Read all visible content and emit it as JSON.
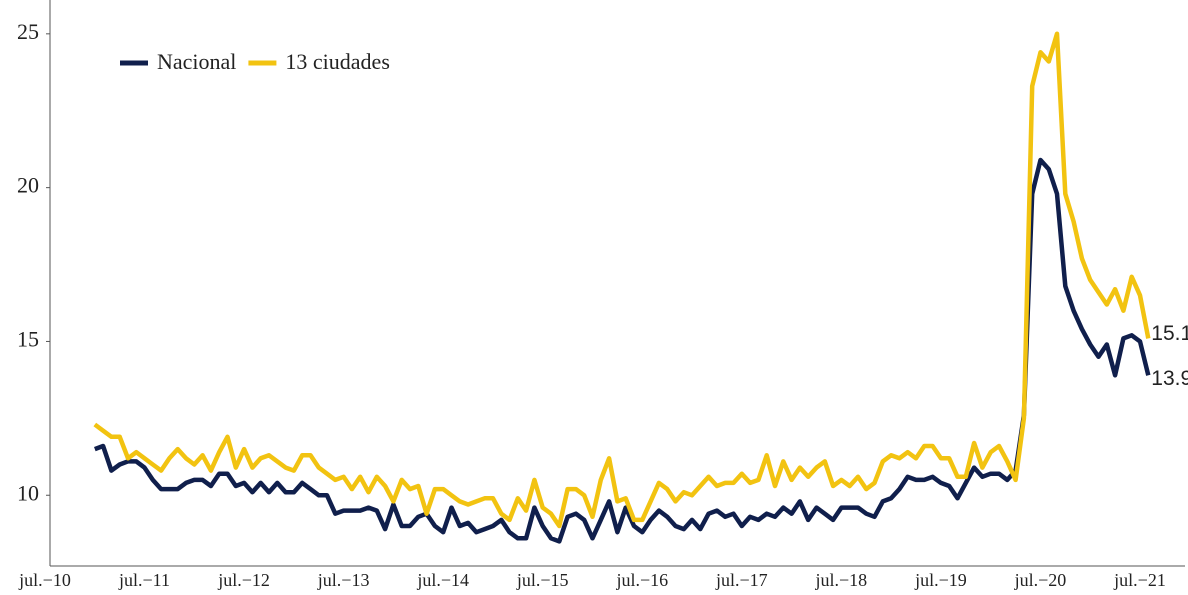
{
  "chart_data": {
    "type": "line",
    "categories": [
      "jul.−10",
      null,
      null,
      null,
      null,
      null,
      null,
      null,
      null,
      null,
      null,
      null,
      "jul.−11",
      null,
      null,
      null,
      null,
      null,
      null,
      null,
      null,
      null,
      null,
      null,
      "jul.−12",
      null,
      null,
      null,
      null,
      null,
      null,
      null,
      null,
      null,
      null,
      null,
      "jul.−13",
      null,
      null,
      null,
      null,
      null,
      null,
      null,
      null,
      null,
      null,
      null,
      "jul.−14",
      null,
      null,
      null,
      null,
      null,
      null,
      null,
      null,
      null,
      null,
      null,
      "jul.−15",
      null,
      null,
      null,
      null,
      null,
      null,
      null,
      null,
      null,
      null,
      null,
      "jul.−16",
      null,
      null,
      null,
      null,
      null,
      null,
      null,
      null,
      null,
      null,
      null,
      "jul.−17",
      null,
      null,
      null,
      null,
      null,
      null,
      null,
      null,
      null,
      null,
      null,
      "jul.−18",
      null,
      null,
      null,
      null,
      null,
      null,
      null,
      null,
      null,
      null,
      null,
      "jul.−19",
      null,
      null,
      null,
      null,
      null,
      null,
      null,
      null,
      null,
      null,
      null,
      "jul.−20",
      null,
      null,
      null,
      null,
      null,
      null,
      null,
      null,
      null,
      null,
      null,
      "jul.−21",
      null
    ],
    "series": [
      {
        "name": "Nacional",
        "color": "#101f4c",
        "values": [
          null,
          null,
          null,
          null,
          null,
          null,
          11.5,
          11.6,
          10.8,
          11.0,
          11.1,
          11.1,
          10.9,
          10.5,
          10.2,
          10.2,
          10.2,
          10.4,
          10.5,
          10.5,
          10.3,
          10.7,
          10.7,
          10.3,
          10.4,
          10.1,
          10.4,
          10.1,
          10.4,
          10.1,
          10.1,
          10.4,
          10.2,
          10.0,
          10.0,
          9.4,
          9.5,
          9.5,
          9.5,
          9.6,
          9.5,
          8.9,
          9.7,
          9.0,
          9.0,
          9.3,
          9.4,
          9.0,
          8.8,
          9.6,
          9.0,
          9.1,
          8.8,
          8.9,
          9.0,
          9.2,
          8.8,
          8.6,
          8.6,
          9.6,
          9.0,
          8.6,
          8.5,
          9.3,
          9.4,
          9.2,
          8.6,
          9.2,
          9.8,
          8.8,
          9.6,
          9.0,
          8.8,
          9.2,
          9.5,
          9.3,
          9.0,
          8.9,
          9.2,
          8.9,
          9.4,
          9.5,
          9.3,
          9.4,
          9.0,
          9.3,
          9.2,
          9.4,
          9.3,
          9.6,
          9.4,
          9.8,
          9.2,
          9.6,
          9.4,
          9.2,
          9.6,
          9.6,
          9.6,
          9.4,
          9.3,
          9.8,
          9.9,
          10.2,
          10.6,
          10.5,
          10.5,
          10.6,
          10.4,
          10.3,
          9.9,
          10.4,
          10.9,
          10.6,
          10.7,
          10.7,
          10.5,
          10.8,
          12.6,
          19.8,
          20.9,
          20.6,
          19.8,
          16.8,
          16.0,
          15.4,
          14.9,
          14.5,
          14.9,
          13.9,
          15.1,
          15.2,
          15.0,
          13.9
        ]
      },
      {
        "name": "13 ciudades",
        "color": "#f2c311",
        "values": [
          null,
          null,
          null,
          null,
          null,
          null,
          12.3,
          12.1,
          11.9,
          11.9,
          11.2,
          11.4,
          11.2,
          11.0,
          10.8,
          11.2,
          11.5,
          11.2,
          11.0,
          11.3,
          10.8,
          11.4,
          11.9,
          10.9,
          11.5,
          10.9,
          11.2,
          11.3,
          11.1,
          10.9,
          10.8,
          11.3,
          11.3,
          10.9,
          10.7,
          10.5,
          10.6,
          10.2,
          10.6,
          10.1,
          10.6,
          10.3,
          9.8,
          10.5,
          10.2,
          10.3,
          9.4,
          10.2,
          10.2,
          10.0,
          9.8,
          9.7,
          9.8,
          9.9,
          9.9,
          9.4,
          9.2,
          9.9,
          9.5,
          10.5,
          9.6,
          9.4,
          9.0,
          10.2,
          10.2,
          10.0,
          9.3,
          10.5,
          11.2,
          9.8,
          9.9,
          9.2,
          9.2,
          9.8,
          10.4,
          10.2,
          9.8,
          10.1,
          10.0,
          10.3,
          10.6,
          10.3,
          10.4,
          10.4,
          10.7,
          10.4,
          10.5,
          11.3,
          10.3,
          11.1,
          10.5,
          10.9,
          10.6,
          10.9,
          11.1,
          10.3,
          10.5,
          10.3,
          10.6,
          10.2,
          10.4,
          11.1,
          11.3,
          11.2,
          11.4,
          11.2,
          11.6,
          11.6,
          11.2,
          11.2,
          10.6,
          10.6,
          11.7,
          10.9,
          11.4,
          11.6,
          11.1,
          10.5,
          12.5,
          23.3,
          24.4,
          24.1,
          25.0,
          19.8,
          18.9,
          17.7,
          17.0,
          16.6,
          16.2,
          16.7,
          16.0,
          17.1,
          16.5,
          15.1
        ]
      }
    ],
    "ylim": [
      7.7,
      26.1
    ],
    "yticks": [
      10,
      15,
      20,
      25
    ],
    "grid": false,
    "legend": "top-left"
  }
}
